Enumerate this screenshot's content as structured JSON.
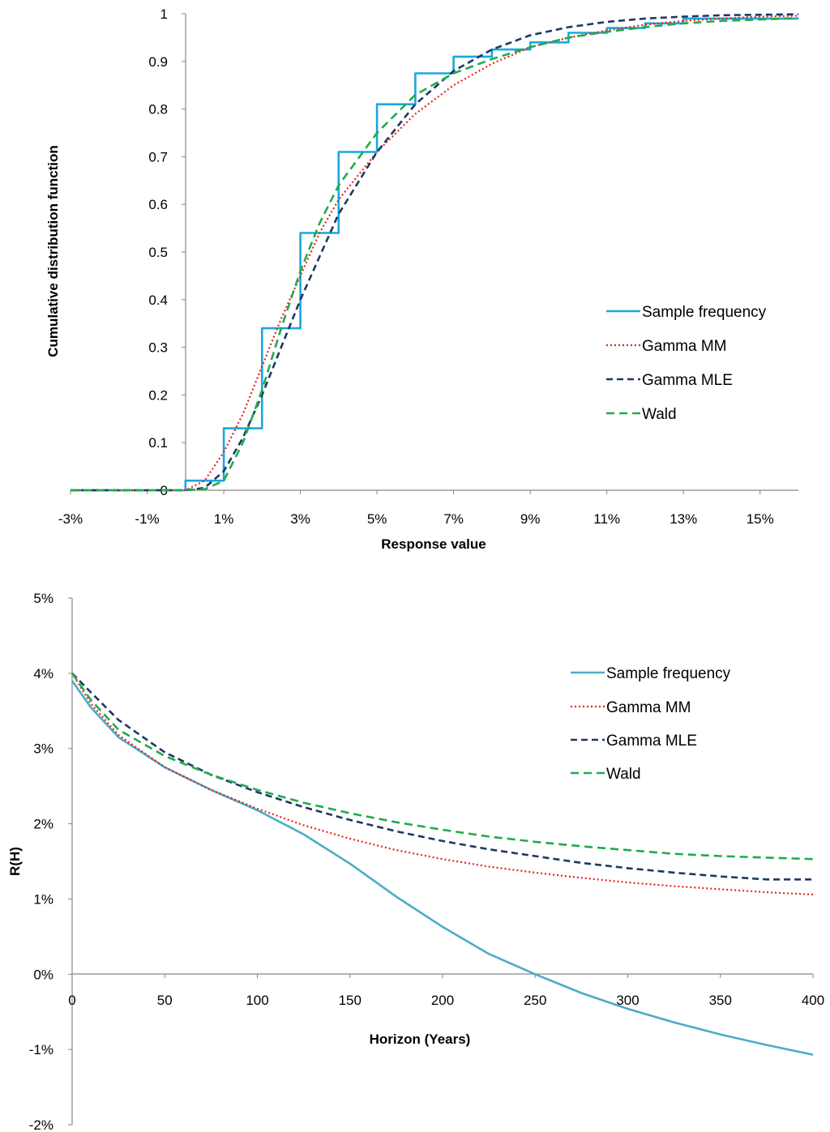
{
  "chart_data": [
    {
      "type": "line",
      "title": "",
      "xlabel": "Response value",
      "ylabel": "Cumulative distribution function",
      "xlim": [
        -0.03,
        0.16
      ],
      "ylim": [
        0,
        1
      ],
      "x_ticks": [
        "-3%",
        "-1%",
        "1%",
        "3%",
        "5%",
        "7%",
        "9%",
        "11%",
        "13%",
        "15%"
      ],
      "y_ticks": [
        "0",
        "0.1",
        "0.2",
        "0.3",
        "0.4",
        "0.5",
        "0.6",
        "0.7",
        "0.8",
        "0.9",
        "1"
      ],
      "legend_position": "right",
      "series": [
        {
          "name": "Sample frequency",
          "style": "step",
          "color": "#1aa7e0",
          "x": [
            -0.03,
            0.0,
            0.0,
            0.01,
            0.01,
            0.02,
            0.02,
            0.03,
            0.03,
            0.04,
            0.04,
            0.05,
            0.05,
            0.06,
            0.06,
            0.07,
            0.07,
            0.08,
            0.08,
            0.09,
            0.09,
            0.1,
            0.1,
            0.11,
            0.11,
            0.12,
            0.12,
            0.13,
            0.13,
            0.16
          ],
          "y": [
            0.0,
            0.0,
            0.02,
            0.02,
            0.13,
            0.13,
            0.34,
            0.34,
            0.54,
            0.54,
            0.71,
            0.71,
            0.81,
            0.81,
            0.875,
            0.875,
            0.91,
            0.91,
            0.925,
            0.925,
            0.94,
            0.94,
            0.96,
            0.96,
            0.97,
            0.97,
            0.98,
            0.98,
            0.99,
            0.99
          ]
        },
        {
          "name": "Gamma MM",
          "style": "dotted",
          "color": "#e8231d",
          "x": [
            -0.03,
            0.0,
            0.005,
            0.01,
            0.015,
            0.02,
            0.025,
            0.03,
            0.035,
            0.04,
            0.05,
            0.06,
            0.07,
            0.08,
            0.09,
            0.1,
            0.11,
            0.12,
            0.13,
            0.14,
            0.15,
            0.16
          ],
          "y": [
            0.0,
            0.0,
            0.02,
            0.08,
            0.16,
            0.26,
            0.36,
            0.45,
            0.54,
            0.61,
            0.71,
            0.79,
            0.85,
            0.895,
            0.93,
            0.95,
            0.965,
            0.977,
            0.985,
            0.99,
            0.994,
            0.996
          ]
        },
        {
          "name": "Gamma MLE",
          "style": "dashed",
          "color": "#1f3864",
          "x": [
            -0.03,
            0.0,
            0.005,
            0.01,
            0.015,
            0.02,
            0.025,
            0.03,
            0.035,
            0.04,
            0.05,
            0.06,
            0.07,
            0.08,
            0.09,
            0.1,
            0.11,
            0.12,
            0.13,
            0.14,
            0.15,
            0.16
          ],
          "y": [
            0.0,
            0.0,
            0.005,
            0.04,
            0.11,
            0.2,
            0.3,
            0.4,
            0.49,
            0.58,
            0.71,
            0.81,
            0.88,
            0.925,
            0.955,
            0.972,
            0.983,
            0.99,
            0.994,
            0.997,
            0.998,
            0.999
          ]
        },
        {
          "name": "Wald",
          "style": "dashed",
          "color": "#1fac4a",
          "x": [
            -0.03,
            0.0,
            0.005,
            0.01,
            0.015,
            0.02,
            0.025,
            0.03,
            0.035,
            0.04,
            0.05,
            0.06,
            0.07,
            0.08,
            0.09,
            0.1,
            0.11,
            0.12,
            0.13,
            0.14,
            0.15,
            0.16
          ],
          "y": [
            0.0,
            0.0,
            0.002,
            0.02,
            0.1,
            0.21,
            0.34,
            0.46,
            0.56,
            0.64,
            0.75,
            0.83,
            0.875,
            0.905,
            0.93,
            0.95,
            0.962,
            0.972,
            0.98,
            0.985,
            0.988,
            0.991
          ]
        }
      ]
    },
    {
      "type": "line",
      "title": "",
      "xlabel": "Horizon (Years)",
      "ylabel": "R(H)",
      "xlim": [
        0,
        400
      ],
      "ylim": [
        -0.02,
        0.05
      ],
      "x_ticks": [
        "0",
        "50",
        "100",
        "150",
        "200",
        "250",
        "300",
        "350",
        "400"
      ],
      "y_ticks": [
        "-2%",
        "-1%",
        "0%",
        "1%",
        "2%",
        "3%",
        "4%",
        "5%"
      ],
      "legend_position": "top-right",
      "series": [
        {
          "name": "Sample frequency",
          "style": "solid",
          "color": "#4bacc6",
          "x": [
            0,
            10,
            25,
            50,
            75,
            100,
            125,
            150,
            175,
            200,
            225,
            250,
            275,
            300,
            325,
            350,
            375,
            400
          ],
          "y": [
            0.039,
            0.0355,
            0.0315,
            0.0275,
            0.0245,
            0.0218,
            0.0186,
            0.0147,
            0.0103,
            0.0063,
            0.0027,
            0.0,
            -0.0025,
            -0.0046,
            -0.0064,
            -0.008,
            -0.0094,
            -0.0107
          ]
        },
        {
          "name": "Gamma MM",
          "style": "dotted",
          "color": "#e8231d",
          "x": [
            0,
            10,
            25,
            50,
            75,
            100,
            125,
            150,
            175,
            200,
            225,
            250,
            275,
            300,
            325,
            350,
            375,
            400
          ],
          "y": [
            0.04,
            0.036,
            0.0318,
            0.0275,
            0.0245,
            0.022,
            0.0198,
            0.018,
            0.0165,
            0.0153,
            0.0143,
            0.0135,
            0.0128,
            0.0122,
            0.0117,
            0.0113,
            0.0109,
            0.0106
          ]
        },
        {
          "name": "Gamma MLE",
          "style": "dashed",
          "color": "#1f3864",
          "x": [
            0,
            10,
            25,
            50,
            75,
            100,
            125,
            150,
            175,
            200,
            225,
            250,
            275,
            300,
            325,
            350,
            375,
            400
          ],
          "y": [
            0.04,
            0.0375,
            0.0338,
            0.0295,
            0.0265,
            0.0242,
            0.0222,
            0.0205,
            0.019,
            0.0177,
            0.0166,
            0.0157,
            0.0148,
            0.0141,
            0.0135,
            0.013,
            0.0126,
            0.0126
          ]
        },
        {
          "name": "Wald",
          "style": "dashed",
          "color": "#1fac4a",
          "x": [
            0,
            10,
            25,
            50,
            75,
            100,
            125,
            150,
            175,
            200,
            225,
            250,
            275,
            300,
            325,
            350,
            375,
            400
          ],
          "y": [
            0.04,
            0.0365,
            0.0325,
            0.029,
            0.0265,
            0.0245,
            0.0228,
            0.0214,
            0.0202,
            0.0192,
            0.0183,
            0.0176,
            0.017,
            0.0165,
            0.016,
            0.0157,
            0.0155,
            0.0153
          ]
        }
      ]
    }
  ]
}
